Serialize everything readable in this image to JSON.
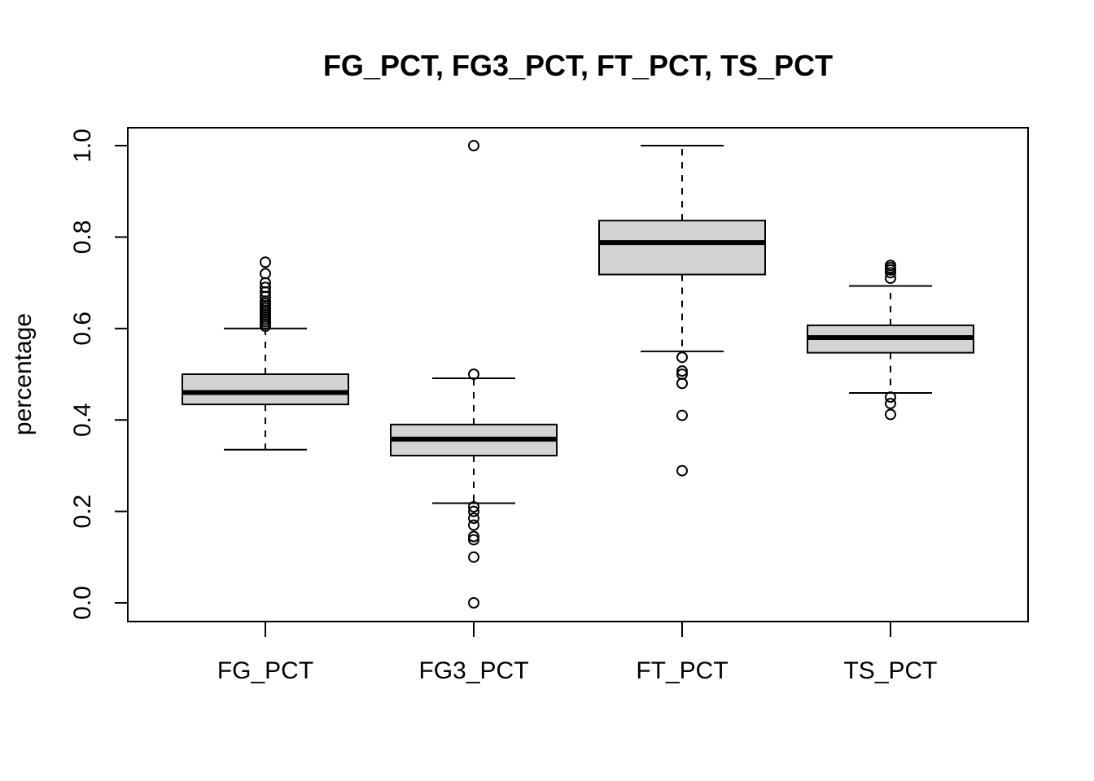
{
  "chart_data": {
    "type": "boxplot",
    "title": "FG_PCT, FG3_PCT, FT_PCT, TS_PCT",
    "xlabel": "",
    "ylabel": "percentage",
    "ylim": [
      -0.04,
      1.04
    ],
    "yticks": [
      0.0,
      0.2,
      0.4,
      0.6,
      0.8,
      1.0
    ],
    "ytick_labels": [
      "0.0",
      "0.2",
      "0.4",
      "0.6",
      "0.8",
      "1.0"
    ],
    "grid": false,
    "box_fill": "#d3d3d3",
    "line_color": "#000000",
    "categories": [
      "FG_PCT",
      "FG3_PCT",
      "FT_PCT",
      "TS_PCT"
    ],
    "boxes": [
      {
        "name": "FG_PCT",
        "whisker_low": 0.335,
        "q1": 0.434,
        "median": 0.46,
        "q3": 0.5,
        "whisker_high": 0.6,
        "outliers": [
          0.605,
          0.61,
          0.615,
          0.62,
          0.625,
          0.63,
          0.635,
          0.64,
          0.645,
          0.65,
          0.655,
          0.66,
          0.67,
          0.68,
          0.69,
          0.7,
          0.72,
          0.745
        ]
      },
      {
        "name": "FG3_PCT",
        "whisker_low": 0.218,
        "q1": 0.322,
        "median": 0.358,
        "q3": 0.39,
        "whisker_high": 0.491,
        "outliers": [
          1.0,
          0.5,
          0.21,
          0.2,
          0.185,
          0.17,
          0.145,
          0.138,
          0.1,
          0.0
        ]
      },
      {
        "name": "FT_PCT",
        "whisker_low": 0.55,
        "q1": 0.718,
        "median": 0.788,
        "q3": 0.836,
        "whisker_high": 1.0,
        "outliers": [
          0.537,
          0.507,
          0.5,
          0.48,
          0.41,
          0.289
        ]
      },
      {
        "name": "TS_PCT",
        "whisker_low": 0.459,
        "q1": 0.547,
        "median": 0.58,
        "q3": 0.607,
        "whisker_high": 0.693,
        "outliers": [
          0.738,
          0.733,
          0.728,
          0.722,
          0.71,
          0.45,
          0.436,
          0.412
        ]
      }
    ]
  }
}
